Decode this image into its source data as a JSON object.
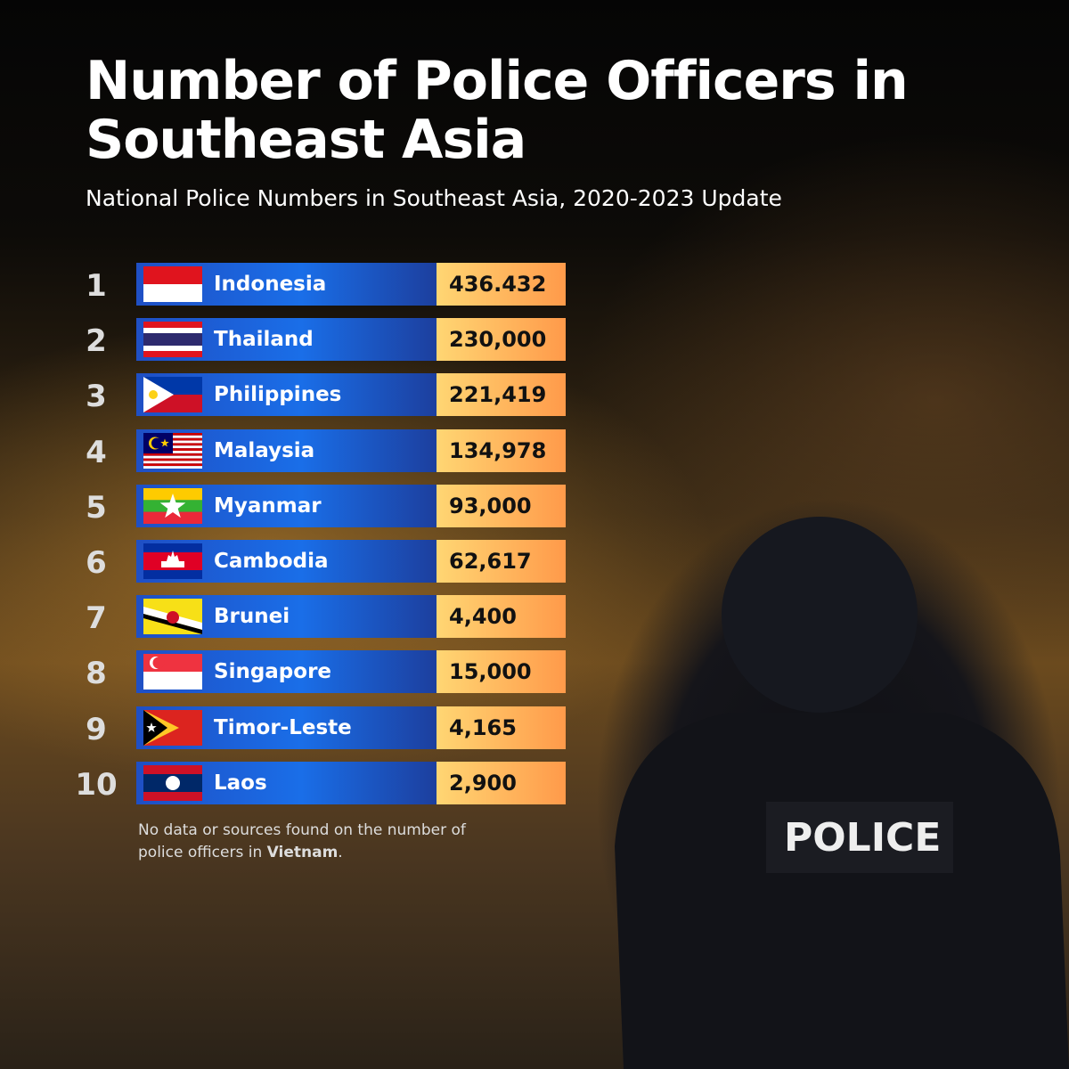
{
  "header": {
    "title": "Number of Police Officers in Southeast Asia",
    "subtitle": "National Police Numbers in Southeast Asia, 2020-2023 Update"
  },
  "table": {
    "rows": [
      [
        "1",
        "Indonesia",
        "436.432"
      ],
      [
        "2",
        "Thailand",
        "230,000"
      ],
      [
        "3",
        "Philippines",
        "221,419"
      ],
      [
        "4",
        "Malaysia",
        "134,978"
      ],
      [
        "5",
        "Myanmar",
        "93,000"
      ],
      [
        "6",
        "Cambodia",
        "62,617"
      ],
      [
        "7",
        "Brunei",
        "4,400"
      ],
      [
        "8",
        "Singapore",
        "15,000"
      ],
      [
        "9",
        "Timor-Leste",
        "4,165"
      ],
      [
        "10",
        "Laos",
        "2,900"
      ]
    ]
  },
  "footnote": {
    "text": "No data or sources found on the number of police officers in",
    "highlight": "Vietnam",
    "end": "."
  },
  "photo": {
    "badge": "POLICE"
  }
}
